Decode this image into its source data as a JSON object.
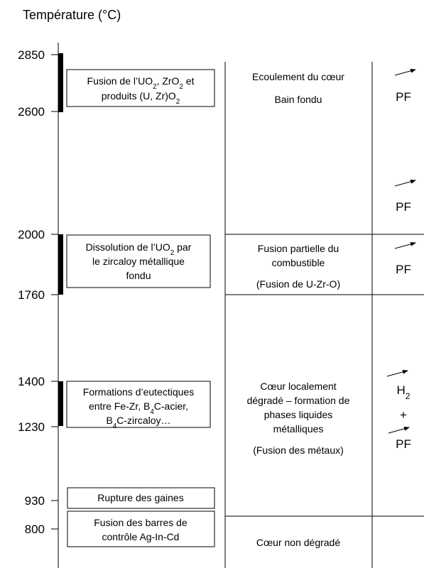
{
  "axis": {
    "title": "Température (°C)",
    "ticks": [
      "2850",
      "2600",
      "2000",
      "1760",
      "1400",
      "1230",
      "930",
      "800"
    ]
  },
  "phenomena": [
    {
      "lines": [
        [
          "Fusion de l’UO",
          {
            "sub": "2"
          },
          ", ZrO",
          {
            "sub": "2"
          },
          " et"
        ],
        [
          "produits (U, Zr)O",
          {
            "sub": "2"
          }
        ]
      ]
    },
    {
      "lines": [
        [
          "Dissolution de l’UO",
          {
            "sub": "2"
          },
          " par"
        ],
        [
          "le zircaloy métallique"
        ],
        [
          "fondu"
        ]
      ]
    },
    {
      "lines": [
        [
          "Formations d’eutectiques"
        ],
        [
          "entre Fe-Zr, B",
          {
            "sub": "4"
          },
          "C-acier,"
        ],
        [
          "B",
          {
            "sub": "4"
          },
          "C-zircaloy…"
        ]
      ]
    },
    {
      "lines": [
        [
          "Rupture des gaines"
        ]
      ]
    },
    {
      "lines": [
        [
          "Fusion des barres de"
        ],
        [
          "contrôle Ag-In-Cd"
        ]
      ]
    }
  ],
  "states": [
    {
      "lines": [
        [
          "Ecoulement du cœur"
        ],
        [
          "Bain fondu"
        ]
      ]
    },
    {
      "lines": [
        [
          "Fusion partielle du"
        ],
        [
          "combustible"
        ],
        [
          "(Fusion de U-Zr-O)"
        ]
      ]
    },
    {
      "lines": [
        [
          "Cœur localement"
        ],
        [
          "dégradé – formation de"
        ],
        [
          "phases liquides"
        ],
        [
          "métalliques"
        ],
        [
          "(Fusion des métaux)"
        ]
      ]
    },
    {
      "lines": [
        [
          "Cœur non dégradé"
        ]
      ]
    }
  ],
  "releases": [
    {
      "lines": [
        [
          "PF"
        ]
      ]
    },
    {
      "lines": [
        [
          "PF"
        ]
      ]
    },
    {
      "lines": [
        [
          "PF"
        ]
      ]
    },
    {
      "lines": [
        [
          "H",
          {
            "sub": "2"
          }
        ],
        [
          "+"
        ],
        [
          "PF"
        ]
      ]
    }
  ]
}
